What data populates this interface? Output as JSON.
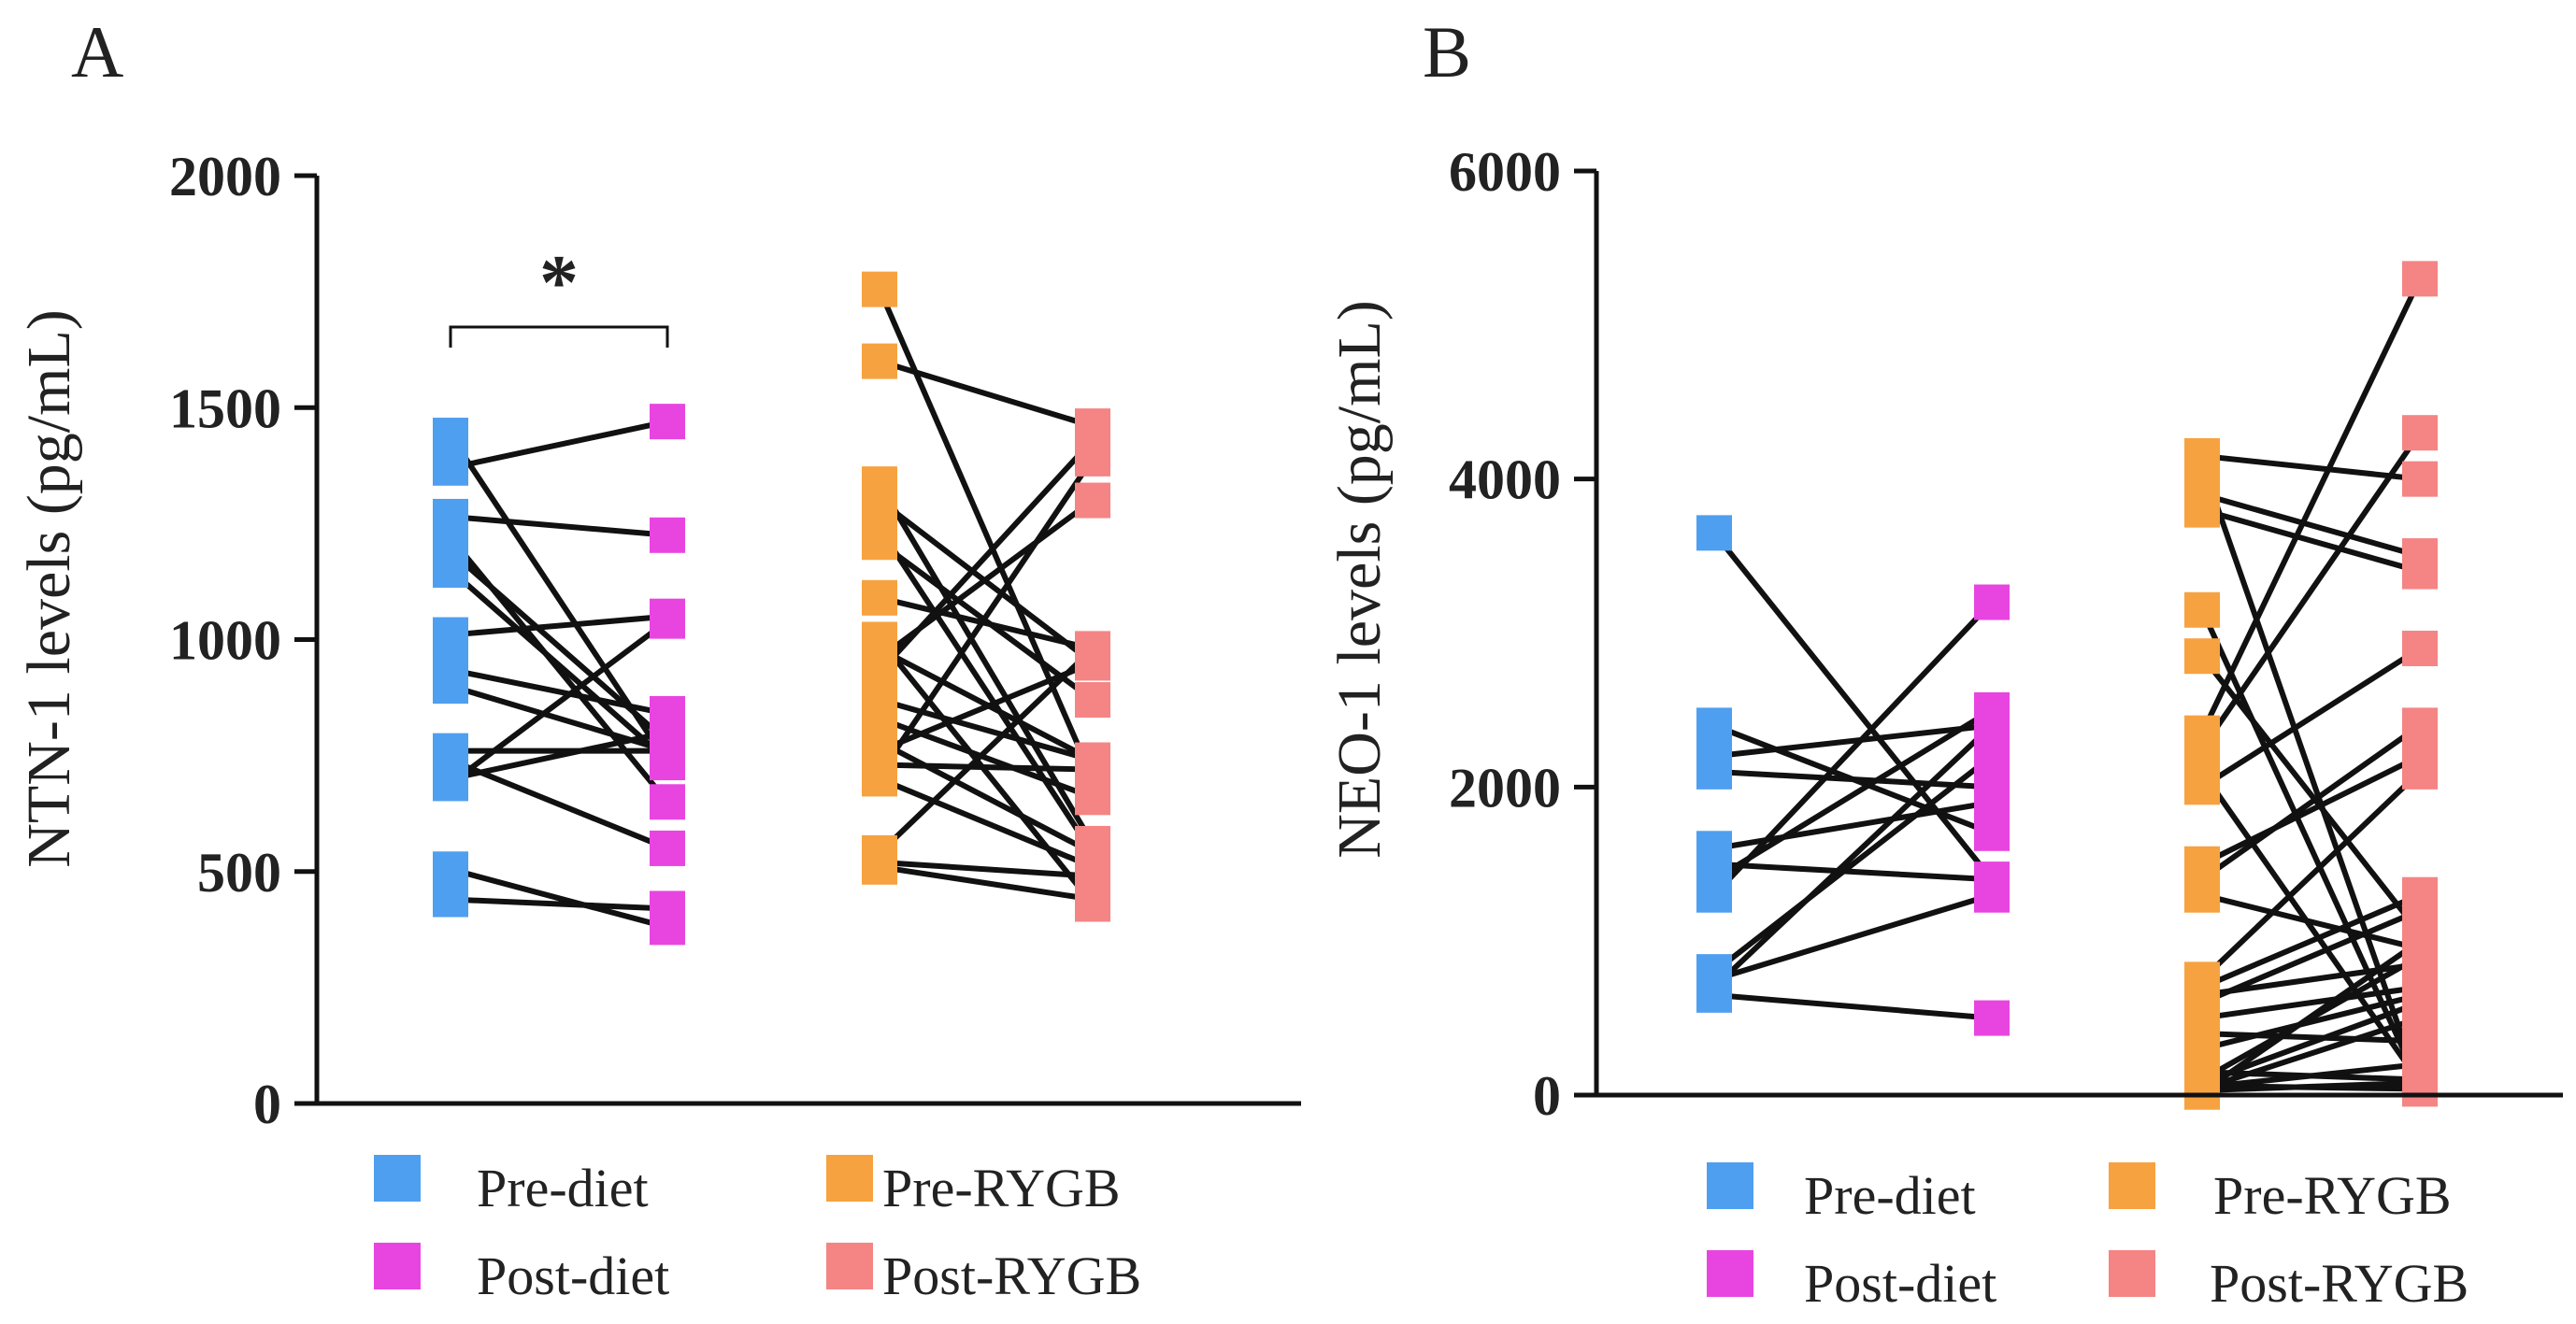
{
  "figure": {
    "panels": [
      "A",
      "B"
    ]
  },
  "colors": {
    "pre_diet": "#4f9ff0",
    "post_diet": "#e845e0",
    "pre_rygb": "#f7a240",
    "post_rygb": "#f58484",
    "axis": "#111111",
    "line": "#111111"
  },
  "chart_data": [
    {
      "panel": "A",
      "type": "scatter",
      "subtype": "paired before-after",
      "ylabel": "NTN-1 levels (pg/mL)",
      "ylim": [
        0,
        2000
      ],
      "yticks": [
        0,
        500,
        1000,
        1500,
        2000
      ],
      "significance": "*",
      "significance_between": [
        "Pre-diet",
        "Post-diet"
      ],
      "legend": [
        "Pre-diet",
        "Post-diet",
        "Pre-RYGB",
        "Post-RYGB"
      ],
      "groups": [
        {
          "name": "Diet",
          "before": "Pre-diet",
          "after": "Post-diet",
          "pairs": [
            [
              1440,
              735
            ],
            [
              1370,
              1470
            ],
            [
              1265,
              1225
            ],
            [
              1220,
              650
            ],
            [
              1190,
              780
            ],
            [
              1150,
              740
            ],
            [
              1010,
              1050
            ],
            [
              935,
              840
            ],
            [
              900,
              760
            ],
            [
              760,
              760
            ],
            [
              740,
              550
            ],
            [
              700,
              800
            ],
            [
              690,
              1040
            ],
            [
              505,
              380
            ],
            [
              440,
              420
            ]
          ]
        },
        {
          "name": "RYGB",
          "before": "Pre-RYGB",
          "after": "Post-RYGB",
          "pairs": [
            [
              1755,
              700
            ],
            [
              1600,
              1460
            ],
            [
              1335,
              560
            ],
            [
              1300,
              950
            ],
            [
              1240,
              540
            ],
            [
              1210,
              870
            ],
            [
              1090,
              980
            ],
            [
              1000,
              430
            ],
            [
              980,
              740
            ],
            [
              960,
              1300
            ],
            [
              930,
              1430
            ],
            [
              870,
              740
            ],
            [
              830,
              660
            ],
            [
              780,
              540
            ],
            [
              760,
              950
            ],
            [
              730,
              720
            ],
            [
              710,
              1390
            ],
            [
              700,
              510
            ],
            [
              540,
              980
            ],
            [
              520,
              490
            ],
            [
              510,
              440
            ]
          ]
        }
      ]
    },
    {
      "panel": "B",
      "type": "scatter",
      "subtype": "paired before-after",
      "ylabel": "NEO-1 levels (pg/mL)",
      "ylim": [
        0,
        6000
      ],
      "yticks": [
        0,
        2000,
        4000,
        6000
      ],
      "legend": [
        "Pre-diet",
        "Post-diet",
        "Pre-RYGB",
        "Post-RYGB"
      ],
      "groups": [
        {
          "name": "Diet",
          "before": "Pre-diet",
          "after": "Post-diet",
          "pairs": [
            [
              3650,
              1400
            ],
            [
              2400,
              1700
            ],
            [
              2200,
              2400
            ],
            [
              2100,
              2000
            ],
            [
              1600,
              1900
            ],
            [
              1500,
              1400
            ],
            [
              1400,
              2500
            ],
            [
              1300,
              3200
            ],
            [
              800,
              2200
            ],
            [
              750,
              1300
            ],
            [
              700,
              2400
            ],
            [
              650,
              500
            ]
          ]
        },
        {
          "name": "RYGB",
          "before": "Pre-RYGB",
          "after": "Post-RYGB",
          "pairs": [
            [
              4150,
              4000
            ],
            [
              4100,
              50
            ],
            [
              3900,
              3500
            ],
            [
              3800,
              3400
            ],
            [
              3150,
              60
            ],
            [
              2850,
              1050
            ],
            [
              2350,
              5300
            ],
            [
              2250,
              4300
            ],
            [
              2100,
              80
            ],
            [
              2000,
              2900
            ],
            [
              1500,
              2200
            ],
            [
              1400,
              2400
            ],
            [
              1300,
              950
            ],
            [
              750,
              2100
            ],
            [
              700,
              1300
            ],
            [
              650,
              850
            ],
            [
              600,
              1200
            ],
            [
              500,
              700
            ],
            [
              400,
              350
            ],
            [
              300,
              650
            ],
            [
              150,
              100
            ],
            [
              100,
              900
            ],
            [
              80,
              600
            ],
            [
              60,
              40
            ],
            [
              50,
              200
            ],
            [
              40,
              500
            ],
            [
              30,
              80
            ],
            [
              20,
              1000
            ]
          ]
        }
      ]
    }
  ]
}
